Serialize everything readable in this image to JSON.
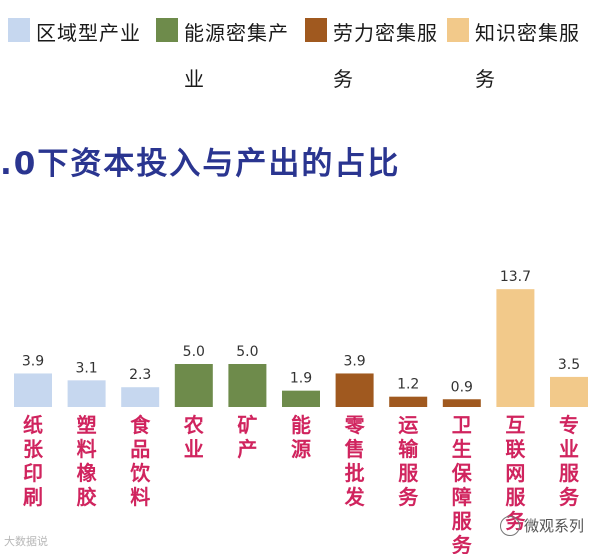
{
  "legend": [
    {
      "label": "区域型产业",
      "color": "#c6d7ef"
    },
    {
      "label": "能源密集产业",
      "color": "#6e8b4b"
    },
    {
      "label": "劳力密集服务",
      "color": "#a0591f"
    },
    {
      "label": "知识密集服务",
      "color": "#f2c98a"
    }
  ],
  "title": ".0下资本投入与产出的占比",
  "chart_data": {
    "type": "bar",
    "categories": [
      "纸张印刷",
      "塑料橡胶",
      "食品饮料",
      "农业",
      "矿产",
      "能源",
      "零售批发",
      "运输服务",
      "卫生保障服务",
      "互联网服务",
      "专业服务"
    ],
    "values": [
      3.9,
      3.1,
      2.3,
      5.0,
      5.0,
      1.9,
      3.9,
      1.2,
      0.9,
      13.7,
      3.5
    ],
    "value_labels": [
      "3.9",
      "3.1",
      "2.3",
      "5.0",
      "5.0",
      "1.9",
      "3.9",
      "1.2",
      "0.9",
      "13.7",
      "3.5"
    ],
    "groups": [
      "区域型产业",
      "区域型产业",
      "区域型产业",
      "能源密集产业",
      "能源密集产业",
      "能源密集产业",
      "劳力密集服务",
      "劳力密集服务",
      "劳力密集服务",
      "知识密集服务",
      "知识密集服务"
    ],
    "category_label_color": "#d0245e",
    "value_label_color": "#333333"
  },
  "watermark_left": "大数据说",
  "watermark_right": "微观系列"
}
